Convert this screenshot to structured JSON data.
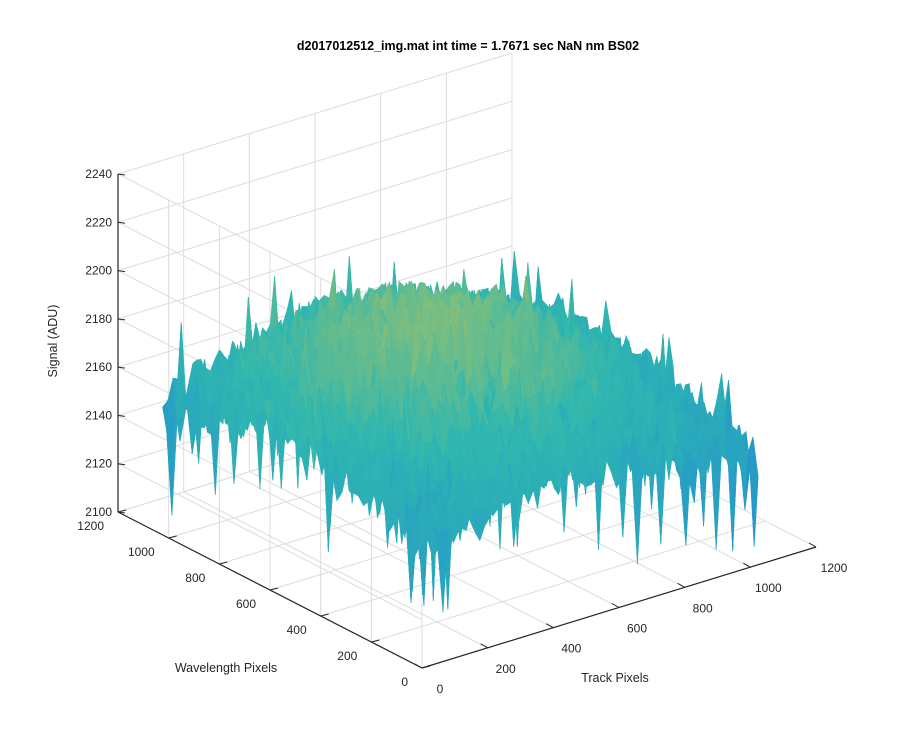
{
  "chart_data": {
    "type": "surface",
    "title": "d2017012512_img.mat int time = 1.7671 sec  NaN nm BS02",
    "xlabel": "Track Pixels",
    "ylabel": "Wavelength Pixels",
    "zlabel": "Signal (ADU)",
    "xlim": [
      0,
      1200
    ],
    "ylim": [
      0,
      1200
    ],
    "zlim": [
      2100,
      2240
    ],
    "x_ticks": [
      "0",
      "200",
      "400",
      "600",
      "800",
      "1000",
      "1200"
    ],
    "y_ticks": [
      "0",
      "200",
      "400",
      "600",
      "800",
      "1000",
      "1200"
    ],
    "z_ticks": [
      "2100",
      "2120",
      "2140",
      "2160",
      "2180",
      "2200",
      "2220",
      "2240"
    ],
    "grid": true,
    "colormap": "parula",
    "data_extent": {
      "x": [
        0,
        1024
      ],
      "y": [
        0,
        1024
      ]
    },
    "surface_level": {
      "min": 2130,
      "typical": 2170,
      "max": 2230
    },
    "colors": {
      "low": "#1f86d9",
      "mid": "#2fb7b0",
      "high": "#e8c83a",
      "axis": "#262626",
      "grid": "#dcdcdc"
    }
  }
}
